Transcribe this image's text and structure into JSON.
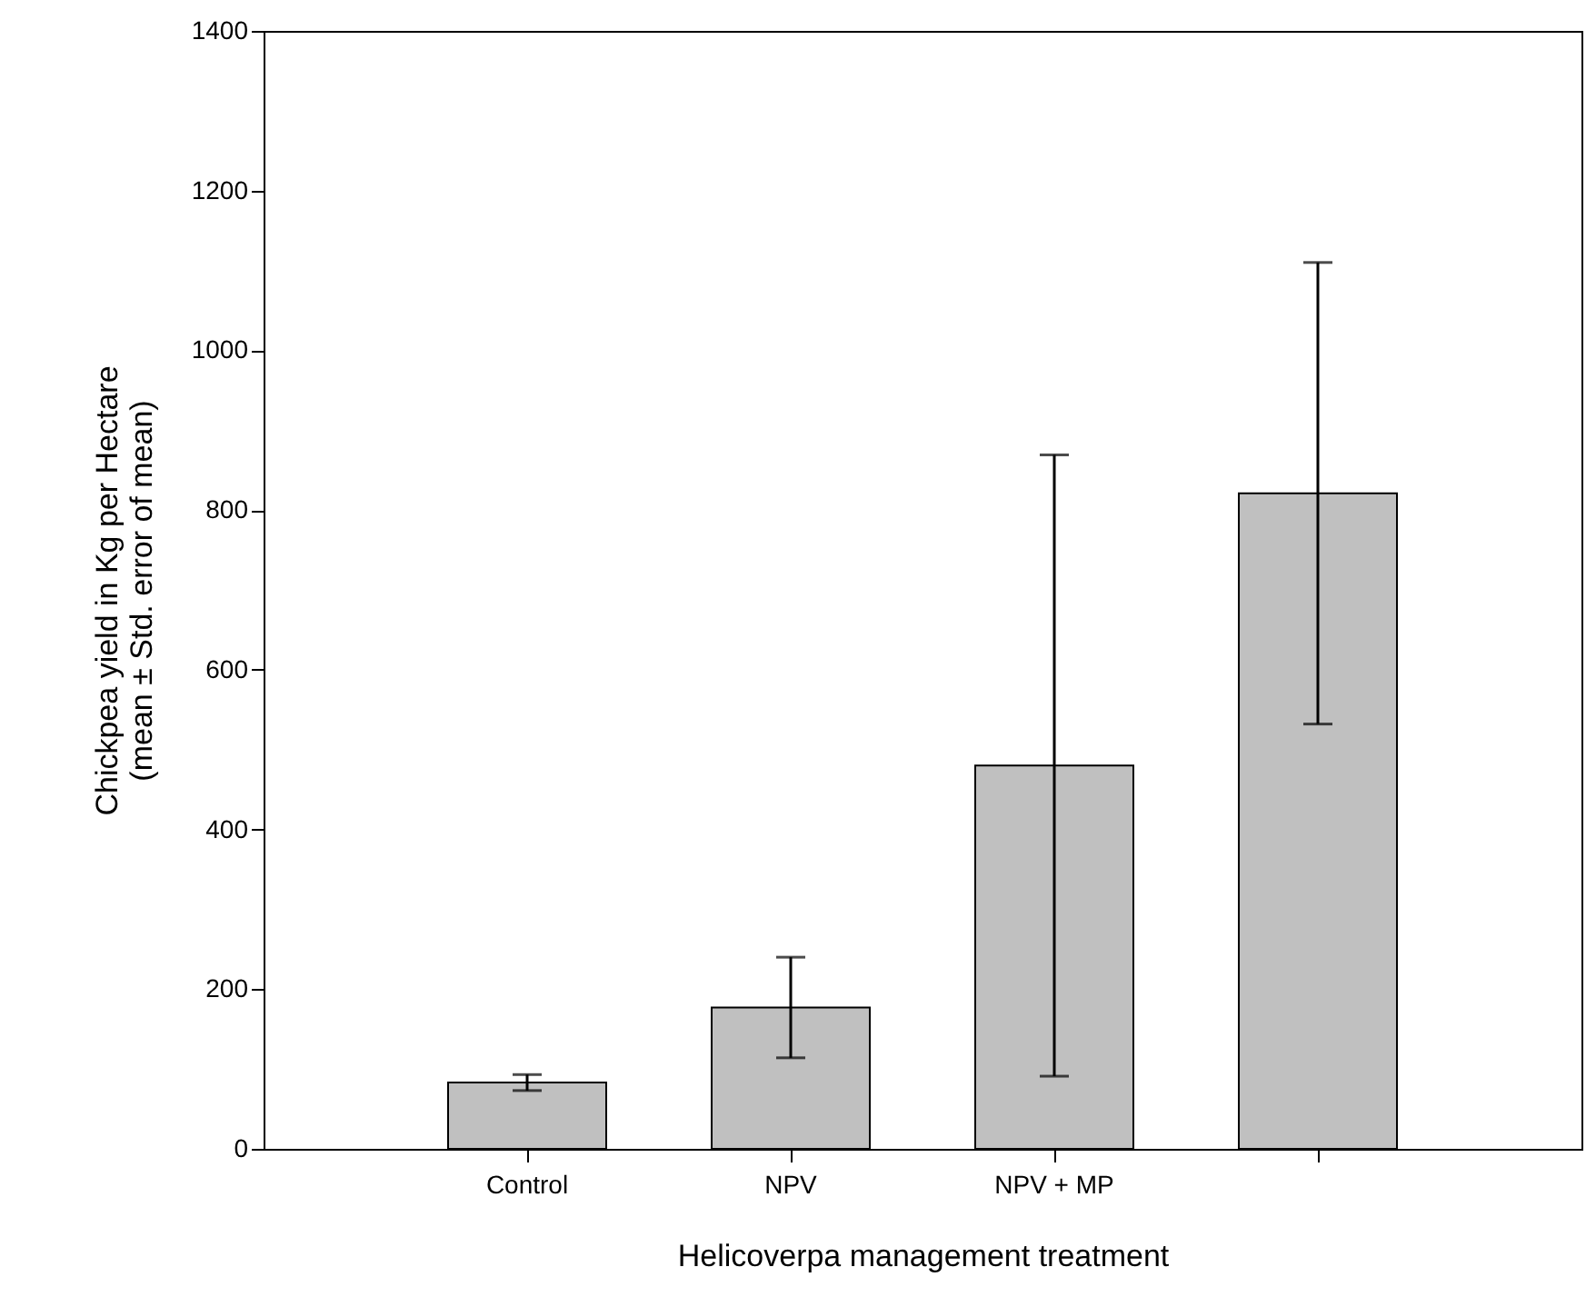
{
  "chart_data": {
    "type": "bar",
    "xlabel": "Helicoverpa management treatment",
    "ylabel": "Chickpea yield in Kg per Hectare\n(mean ± Std. error of mean)",
    "categories": [
      "Control",
      "NPV",
      "NPV + MP",
      null
    ],
    "values": [
      83,
      177,
      480,
      821
    ],
    "errors": [
      10,
      63,
      389,
      289
    ],
    "color": "#c0c0c0",
    "ylim": [
      0,
      1400
    ],
    "yticks": [
      0,
      200,
      400,
      600,
      800,
      1000,
      1200,
      1400
    ],
    "grid": false
  }
}
